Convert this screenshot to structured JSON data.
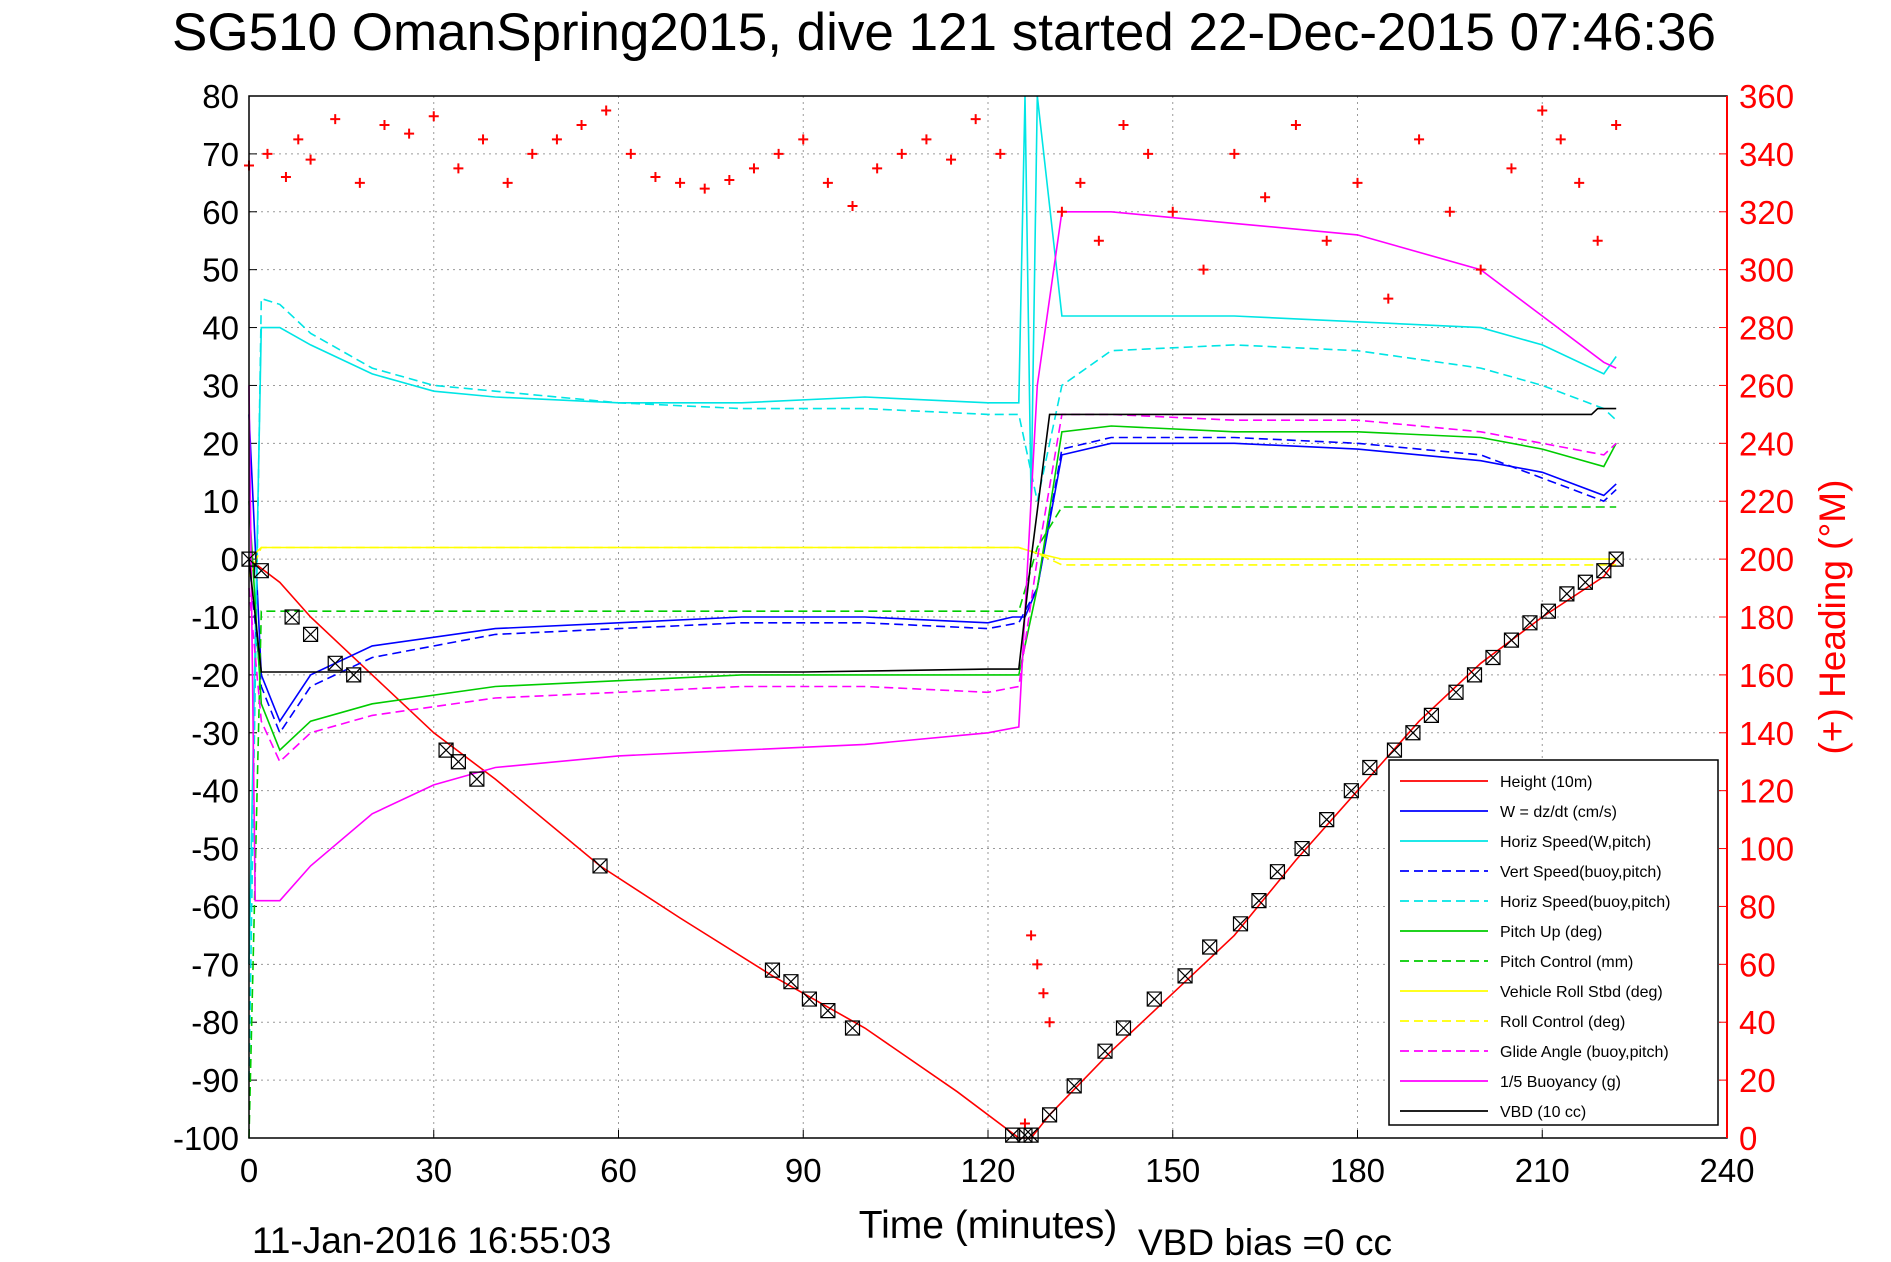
{
  "chart_data": {
    "type": "line",
    "title": "SG510 OmanSpring2015, dive 121 started 22-Dec-2015 07:46:36",
    "xlabel": "Time (minutes)",
    "ylabel": "",
    "ylabel_right": "(+) Heading (°M)",
    "footer_date": "11-Jan-2016 16:55:03",
    "footer_vbd": "VBD bias =0 cc",
    "xlim": [
      0,
      240
    ],
    "ylim": [
      -100,
      80
    ],
    "ylim_right": [
      0,
      360
    ],
    "x_ticks": [
      "0",
      "30",
      "60",
      "90",
      "120",
      "150",
      "180",
      "210",
      "240"
    ],
    "y_ticks": [
      "80",
      "70",
      "60",
      "50",
      "40",
      "30",
      "20",
      "10",
      "0",
      "-10",
      "-20",
      "-30",
      "-40",
      "-50",
      "-60",
      "-70",
      "-80",
      "-90",
      "-100"
    ],
    "y_ticks_right": [
      "360",
      "340",
      "320",
      "300",
      "280",
      "260",
      "240",
      "220",
      "200",
      "180",
      "160",
      "140",
      "120",
      "100",
      "80",
      "60",
      "40",
      "20",
      "0"
    ],
    "grid": true,
    "legend_position": "bottom-right",
    "series": [
      {
        "name": "Height (10m)",
        "color": "#ff0000",
        "dash": "solid",
        "x": [
          0,
          5,
          10,
          15,
          20,
          30,
          40,
          57,
          70,
          85,
          100,
          115,
          125,
          127,
          130,
          140,
          150,
          160,
          170,
          180,
          190,
          200,
          210,
          220,
          222
        ],
        "y": [
          0,
          -4,
          -10,
          -15,
          -20,
          -30,
          -38,
          -53,
          -62,
          -72,
          -81,
          -92,
          -100,
          -100,
          -96,
          -85,
          -75,
          -65,
          -52,
          -40,
          -28,
          -18,
          -10,
          -3,
          0
        ]
      },
      {
        "name": "W = dz/dt (cm/s)",
        "color": "#0000ff",
        "dash": "solid",
        "x": [
          0,
          2,
          5,
          10,
          20,
          40,
          60,
          80,
          100,
          120,
          124,
          126,
          128,
          132,
          140,
          160,
          180,
          200,
          210,
          220,
          222
        ],
        "y": [
          25,
          -20,
          -28,
          -20,
          -15,
          -12,
          -11,
          -10,
          -10,
          -11,
          -10,
          -10,
          -5,
          18,
          20,
          20,
          19,
          17,
          15,
          11,
          13
        ]
      },
      {
        "name": "Horiz Speed(W,pitch)",
        "color": "#00e5e5",
        "dash": "solid",
        "x": [
          0,
          2,
          5,
          10,
          20,
          30,
          40,
          60,
          80,
          100,
          120,
          125,
          126,
          127,
          128,
          132,
          140,
          160,
          180,
          200,
          210,
          220,
          222
        ],
        "y": [
          -70,
          40,
          40,
          37,
          32,
          29,
          28,
          27,
          27,
          28,
          27,
          27,
          80,
          10,
          80,
          42,
          42,
          42,
          41,
          40,
          37,
          32,
          35
        ]
      },
      {
        "name": "Vert Speed(buoy,pitch)",
        "color": "#0000ff",
        "dash": "dashed",
        "x": [
          0,
          2,
          5,
          10,
          20,
          40,
          60,
          80,
          100,
          120,
          125,
          128,
          132,
          140,
          160,
          180,
          200,
          210,
          220,
          222
        ],
        "y": [
          0,
          -22,
          -30,
          -22,
          -17,
          -13,
          -12,
          -11,
          -11,
          -12,
          -11,
          -5,
          19,
          21,
          21,
          20,
          18,
          14,
          10,
          12
        ]
      },
      {
        "name": "Horiz Speed(buoy,pitch)",
        "color": "#00e5e5",
        "dash": "dashed",
        "x": [
          0,
          2,
          5,
          10,
          20,
          30,
          40,
          60,
          80,
          100,
          120,
          125,
          128,
          132,
          140,
          160,
          180,
          200,
          210,
          220,
          222
        ],
        "y": [
          -90,
          45,
          44,
          39,
          33,
          30,
          29,
          27,
          26,
          26,
          25,
          25,
          10,
          30,
          36,
          37,
          36,
          33,
          30,
          26,
          24
        ]
      },
      {
        "name": "Pitch Up (deg)",
        "color": "#00cc00",
        "dash": "solid",
        "x": [
          0,
          2,
          5,
          10,
          20,
          40,
          60,
          80,
          100,
          120,
          125,
          128,
          132,
          140,
          160,
          180,
          200,
          210,
          220,
          222
        ],
        "y": [
          10,
          -25,
          -33,
          -28,
          -25,
          -22,
          -21,
          -20,
          -20,
          -20,
          -20,
          -5,
          22,
          23,
          22,
          22,
          21,
          19,
          16,
          20
        ]
      },
      {
        "name": "Pitch Control (mm)",
        "color": "#00cc00",
        "dash": "dashed",
        "x": [
          0,
          2,
          10,
          20,
          30,
          40,
          60,
          80,
          100,
          120,
          125,
          128,
          132,
          140,
          160,
          180,
          200,
          210,
          220,
          222
        ],
        "y": [
          -100,
          -9,
          -9,
          -9,
          -9,
          -9,
          -9,
          -9,
          -9,
          -9,
          -9,
          2,
          9,
          9,
          9,
          9,
          9,
          9,
          9,
          9
        ]
      },
      {
        "name": "Vehicle Roll Stbd (deg)",
        "color": "#ffff00",
        "dash": "solid",
        "x": [
          0,
          2,
          10,
          20,
          40,
          60,
          80,
          100,
          120,
          125,
          128,
          132,
          140,
          160,
          180,
          200,
          210,
          220,
          222
        ],
        "y": [
          0,
          2,
          2,
          2,
          2,
          2,
          2,
          2,
          2,
          2,
          1,
          0,
          0,
          0,
          0,
          0,
          0,
          0,
          0
        ]
      },
      {
        "name": "Roll Control (deg)",
        "color": "#ffff00",
        "dash": "dashed",
        "x": [
          0,
          2,
          10,
          20,
          40,
          60,
          80,
          100,
          120,
          125,
          128,
          132,
          140,
          160,
          180,
          200,
          210,
          220,
          222
        ],
        "y": [
          -3,
          2,
          2,
          2,
          2,
          2,
          2,
          2,
          2,
          2,
          1,
          -1,
          -1,
          -1,
          -1,
          -1,
          -1,
          -1,
          -1
        ]
      },
      {
        "name": "Glide Angle (buoy,pitch)",
        "color": "#ff00ff",
        "dash": "dashed",
        "x": [
          0,
          2,
          5,
          10,
          20,
          40,
          60,
          80,
          100,
          120,
          125,
          128,
          132,
          140,
          160,
          180,
          200,
          210,
          220,
          222
        ],
        "y": [
          -5,
          -28,
          -35,
          -30,
          -27,
          -24,
          -23,
          -22,
          -22,
          -23,
          -22,
          0,
          25,
          25,
          24,
          24,
          22,
          20,
          18,
          20
        ]
      },
      {
        "name": "1/5 Buoyancy (g)",
        "color": "#ff00ff",
        "dash": "solid",
        "x": [
          0,
          1,
          5,
          10,
          20,
          30,
          40,
          60,
          80,
          100,
          120,
          125,
          128,
          132,
          140,
          160,
          180,
          200,
          210,
          220,
          222
        ],
        "y": [
          30,
          -59,
          -59,
          -53,
          -44,
          -39,
          -36,
          -34,
          -33,
          -32,
          -30,
          -29,
          30,
          60,
          60,
          58,
          56,
          50,
          42,
          34,
          33
        ]
      },
      {
        "name": "VBD (10 cc)",
        "color": "#000000",
        "dash": "solid",
        "x": [
          0,
          2,
          30,
          60,
          90,
          120,
          125,
          127,
          130,
          150,
          180,
          210,
          218,
          219,
          222
        ],
        "y": [
          0,
          -19.5,
          -19.5,
          -19.5,
          -19.5,
          -19,
          -19,
          0,
          25,
          25,
          25,
          25,
          25,
          26,
          26
        ]
      }
    ],
    "heading_series": {
      "name": "(+) Heading (°M)",
      "color": "#ff0000",
      "x": [
        0,
        3,
        6,
        8,
        10,
        14,
        18,
        22,
        26,
        30,
        34,
        38,
        42,
        46,
        50,
        54,
        58,
        62,
        66,
        70,
        74,
        78,
        82,
        86,
        90,
        94,
        98,
        102,
        106,
        110,
        114,
        118,
        122,
        126,
        127,
        128,
        129,
        130,
        132,
        135,
        138,
        142,
        146,
        150,
        155,
        160,
        165,
        170,
        175,
        180,
        185,
        190,
        195,
        200,
        205,
        210,
        213,
        216,
        219,
        222
      ],
      "y": [
        336,
        340,
        332,
        345,
        338,
        352,
        330,
        350,
        347,
        353,
        335,
        345,
        330,
        340,
        345,
        350,
        355,
        340,
        332,
        330,
        328,
        331,
        335,
        340,
        345,
        330,
        322,
        335,
        340,
        345,
        338,
        352,
        340,
        5,
        70,
        60,
        50,
        40,
        320,
        330,
        310,
        350,
        340,
        320,
        300,
        340,
        325,
        350,
        310,
        330,
        290,
        345,
        320,
        300,
        335,
        355,
        345,
        330,
        310,
        350
      ]
    },
    "markers": {
      "color": "#000000",
      "x": [
        0,
        2,
        7,
        10,
        14,
        17,
        32,
        34,
        37,
        57,
        85,
        88,
        91,
        94,
        98,
        124,
        126,
        127,
        130,
        134,
        139,
        142,
        147,
        152,
        156,
        161,
        164,
        167,
        171,
        175,
        179,
        182,
        186,
        189,
        192,
        196,
        199,
        202,
        205,
        208,
        211,
        214,
        217,
        220,
        222
      ],
      "y": [
        0,
        -2,
        -10,
        -13,
        -18,
        -20,
        -33,
        -35,
        -38,
        -53,
        -71,
        -73,
        -76,
        -78,
        -81,
        -99.5,
        -99.5,
        -99.5,
        -96,
        -91,
        -85,
        -81,
        -76,
        -72,
        -67,
        -63,
        -59,
        -54,
        -50,
        -45,
        -40,
        -36,
        -33,
        -30,
        -27,
        -23,
        -20,
        -17,
        -14,
        -11,
        -9,
        -6,
        -4,
        -2,
        0
      ]
    }
  }
}
